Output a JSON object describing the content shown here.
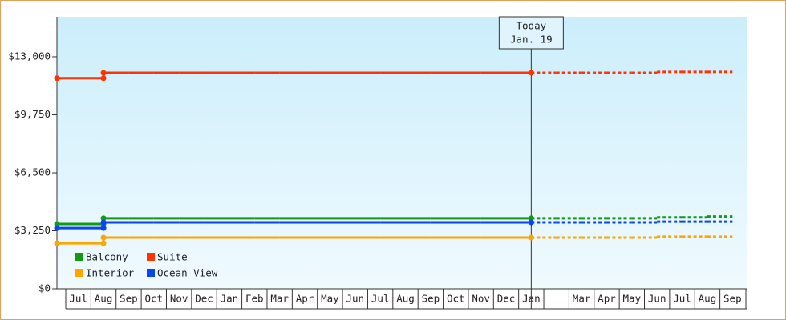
{
  "chart_data": {
    "type": "step-line",
    "categories": [
      "Jul",
      "Aug",
      "Sep",
      "Oct",
      "Nov",
      "Dec",
      "Jan",
      "Feb",
      "Mar",
      "Apr",
      "May",
      "Jun",
      "Jul",
      "Aug",
      "Sep",
      "Oct",
      "Nov",
      "Dec",
      "Jan",
      null,
      "Mar",
      "Apr",
      "May",
      "Jun",
      "Jul",
      "Aug",
      "Sep"
    ],
    "ylim": [
      0,
      15240
    ],
    "yticks": [
      {
        "value": 0,
        "label": "$0"
      },
      {
        "value": 3250,
        "label": "$3,250"
      },
      {
        "value": 6500,
        "label": "$6,500"
      },
      {
        "value": 9750,
        "label": "$9,750"
      },
      {
        "value": 13000,
        "label": "$13,000"
      }
    ],
    "annotation": [
      "Today",
      "Jan. 19"
    ],
    "series": [
      {
        "name": "Balcony",
        "color": "#139a13",
        "values": [
          3630,
          3950,
          3950,
          3950,
          3950,
          3950,
          3950,
          3950,
          3950,
          3950,
          3950,
          3950,
          3950,
          3950,
          3950,
          3950,
          3950,
          3950,
          3950,
          null,
          null,
          null,
          null,
          null,
          null,
          null,
          null
        ],
        "forecast": [
          null,
          null,
          null,
          null,
          null,
          null,
          null,
          null,
          null,
          null,
          null,
          null,
          null,
          null,
          null,
          null,
          null,
          null,
          3950,
          3950,
          3950,
          3950,
          3950,
          4000,
          4000,
          4050,
          4050
        ]
      },
      {
        "name": "Suite",
        "color": "#ff3300",
        "values": [
          11800,
          12100,
          12100,
          12100,
          12100,
          12100,
          12100,
          12100,
          12100,
          12100,
          12100,
          12100,
          12100,
          12100,
          12100,
          12100,
          12100,
          12100,
          12100,
          null,
          null,
          null,
          null,
          null,
          null,
          null,
          null
        ],
        "forecast": [
          null,
          null,
          null,
          null,
          null,
          null,
          null,
          null,
          null,
          null,
          null,
          null,
          null,
          null,
          null,
          null,
          null,
          null,
          12100,
          12100,
          12100,
          12100,
          12100,
          12150,
          12150,
          12150,
          12150
        ]
      },
      {
        "name": "Interior",
        "color": "#ffa500",
        "values": [
          2550,
          2870,
          2870,
          2870,
          2870,
          2870,
          2870,
          2870,
          2870,
          2870,
          2870,
          2870,
          2870,
          2870,
          2870,
          2870,
          2870,
          2870,
          2870,
          null,
          null,
          null,
          null,
          null,
          null,
          null,
          null
        ],
        "forecast": [
          null,
          null,
          null,
          null,
          null,
          null,
          null,
          null,
          null,
          null,
          null,
          null,
          null,
          null,
          null,
          null,
          null,
          null,
          2870,
          2870,
          2870,
          2870,
          2870,
          2920,
          2920,
          2920,
          2920
        ]
      },
      {
        "name": "Ocean View",
        "color": "#0a44f5",
        "values": [
          3400,
          3720,
          3720,
          3720,
          3720,
          3720,
          3720,
          3720,
          3720,
          3720,
          3720,
          3720,
          3720,
          3720,
          3720,
          3720,
          3720,
          3720,
          3720,
          null,
          null,
          null,
          null,
          null,
          null,
          null,
          null
        ],
        "forecast": [
          null,
          null,
          null,
          null,
          null,
          null,
          null,
          null,
          null,
          null,
          null,
          null,
          null,
          null,
          null,
          null,
          null,
          null,
          3720,
          3720,
          3720,
          3720,
          3720,
          3760,
          3760,
          3760,
          3760
        ]
      }
    ]
  }
}
